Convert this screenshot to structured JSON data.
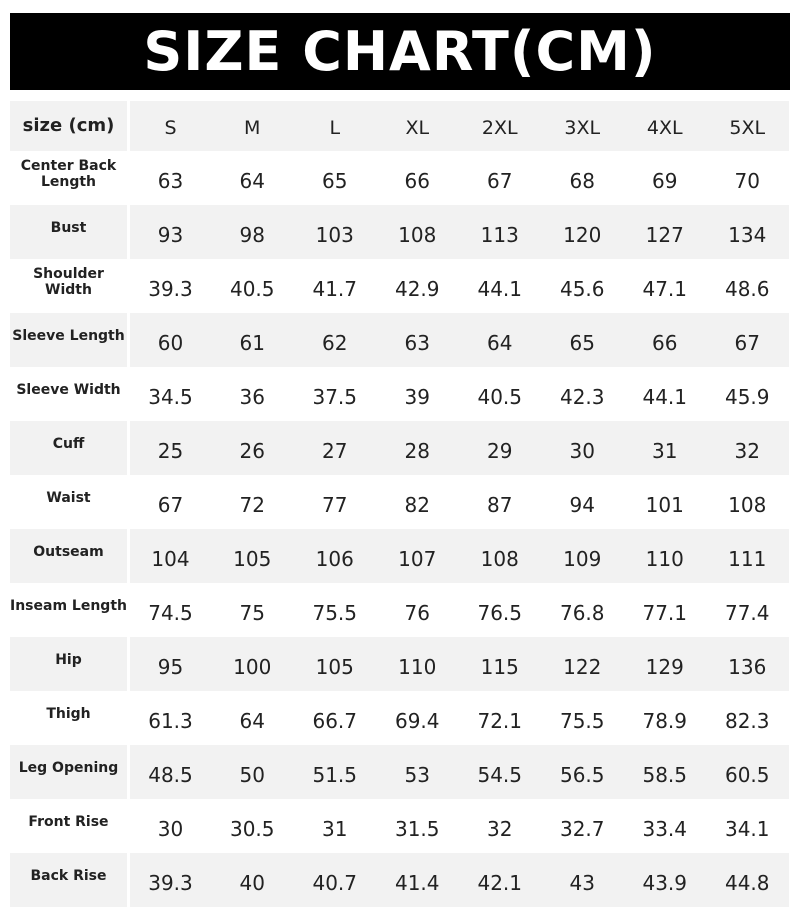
{
  "title": "SIZE CHART(CM)",
  "header": {
    "label": "size (cm)",
    "sizes": [
      "S",
      "M",
      "L",
      "XL",
      "2XL",
      "3XL",
      "4XL",
      "5XL"
    ]
  },
  "rows": [
    {
      "label": "Center Back Length",
      "values": [
        "63",
        "64",
        "65",
        "66",
        "67",
        "68",
        "69",
        "70"
      ]
    },
    {
      "label": "Bust",
      "values": [
        "93",
        "98",
        "103",
        "108",
        "113",
        "120",
        "127",
        "134"
      ]
    },
    {
      "label": "Shoulder Width",
      "values": [
        "39.3",
        "40.5",
        "41.7",
        "42.9",
        "44.1",
        "45.6",
        "47.1",
        "48.6"
      ]
    },
    {
      "label": "Sleeve Length",
      "values": [
        "60",
        "61",
        "62",
        "63",
        "64",
        "65",
        "66",
        "67"
      ]
    },
    {
      "label": "Sleeve Width",
      "values": [
        "34.5",
        "36",
        "37.5",
        "39",
        "40.5",
        "42.3",
        "44.1",
        "45.9"
      ]
    },
    {
      "label": "Cuff",
      "values": [
        "25",
        "26",
        "27",
        "28",
        "29",
        "30",
        "31",
        "32"
      ]
    },
    {
      "label": "Waist",
      "values": [
        "67",
        "72",
        "77",
        "82",
        "87",
        "94",
        "101",
        "108"
      ]
    },
    {
      "label": "Outseam",
      "values": [
        "104",
        "105",
        "106",
        "107",
        "108",
        "109",
        "110",
        "111"
      ]
    },
    {
      "label": "Inseam Length",
      "values": [
        "74.5",
        "75",
        "75.5",
        "76",
        "76.5",
        "76.8",
        "77.1",
        "77.4"
      ]
    },
    {
      "label": "Hip",
      "values": [
        "95",
        "100",
        "105",
        "110",
        "115",
        "122",
        "129",
        "136"
      ]
    },
    {
      "label": "Thigh",
      "values": [
        "61.3",
        "64",
        "66.7",
        "69.4",
        "72.1",
        "75.5",
        "78.9",
        "82.3"
      ]
    },
    {
      "label": "Leg Opening",
      "values": [
        "48.5",
        "50",
        "51.5",
        "53",
        "54.5",
        "56.5",
        "58.5",
        "60.5"
      ]
    },
    {
      "label": "Front Rise",
      "values": [
        "30",
        "30.5",
        "31",
        "31.5",
        "32",
        "32.7",
        "33.4",
        "34.1"
      ]
    },
    {
      "label": "Back Rise",
      "values": [
        "39.3",
        "40",
        "40.7",
        "41.4",
        "42.1",
        "43",
        "43.9",
        "44.8"
      ]
    }
  ],
  "colors": {
    "banner": "#000000",
    "shade": "#f2f2f2",
    "text": "#222222"
  }
}
